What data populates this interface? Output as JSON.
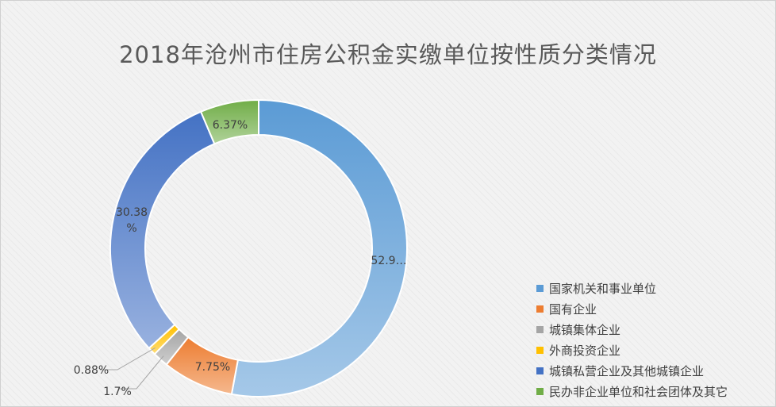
{
  "chart_data": {
    "type": "donut",
    "title": "2018年沧州市住房公积金实缴单位按性质分类情况",
    "series": [
      {
        "name": "国家机关和事业单位",
        "value": 52.92,
        "label": "52.9…",
        "color": "#5b9bd5"
      },
      {
        "name": "国有企业",
        "value": 7.75,
        "label": "7.75%",
        "color": "#ed7d31"
      },
      {
        "name": "城镇集体企业",
        "value": 1.7,
        "label": "1.7%",
        "color": "#a5a5a5"
      },
      {
        "name": "外商投资企业",
        "value": 0.88,
        "label": "0.88%",
        "color": "#ffc000"
      },
      {
        "name": "城镇私营企业及其他城镇企业",
        "value": 30.38,
        "label": "30.38%",
        "label_lines": [
          "30.38",
          "%"
        ],
        "color": "#4472c4"
      },
      {
        "name": "民办非企业单位和社会团体及其它",
        "value": 6.37,
        "label": "6.37%",
        "color": "#70ad47"
      }
    ],
    "legend_position": "bottom-right"
  }
}
